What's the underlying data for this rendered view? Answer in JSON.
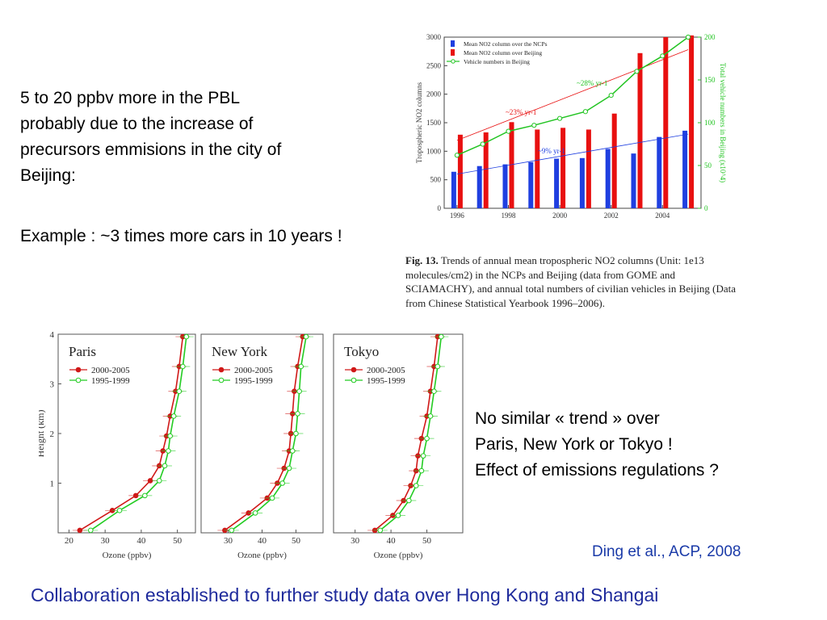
{
  "slide": {
    "intro_lines": [
      "5 to 20 ppbv more in the PBL",
      "probably due to the increase of",
      "precursors emmisions in the city of",
      "Beijing:"
    ],
    "example": "Example : ~3 times more cars in 10 years !",
    "no_similar_lines": [
      "No similar « trend » over",
      "Paris, New York or Tokyo !",
      "Effect of emissions regulations ?"
    ],
    "citation": "Ding et al., ACP, 2008",
    "collaboration": "Collaboration established to further study data over Hong Kong and Shangai"
  },
  "figure_caption": {
    "label": "Fig. 13.",
    "text": "Trends of annual mean tropospheric NO2 columns (Unit: 1e13 molecules/cm2) in the NCPs and Beijing (data from GOME and SCIAMACHY), and annual total numbers of civilian vehicles in Beijing (Data from Chinese Statistical Yearbook 1996–2006)."
  },
  "colors": {
    "ncp_bar": "#1f3fe0",
    "beijing_bar": "#e81010",
    "vehicles": "#22c422",
    "series_2000_2005": "#d01818",
    "series_1995_1999": "#22cc22",
    "slide_blue": "#1f2b9c"
  },
  "chart_data": [
    {
      "type": "bar",
      "title": "",
      "xlabel": "",
      "ylabel": "Tropospheric NO2 columns",
      "y2label": "Total vehicle numbers in Beijing (x10^4)",
      "xticks": [
        "1996",
        "1998",
        "2000",
        "2002",
        "2004"
      ],
      "yticks": [
        "0",
        "500",
        "1000",
        "1500",
        "2000",
        "2500",
        "3000"
      ],
      "y2ticks": [
        "0",
        "50",
        "100",
        "150",
        "200"
      ],
      "ylim": [
        0,
        3000
      ],
      "y2lim": [
        0,
        200
      ],
      "categories": [
        "1996",
        "1997",
        "1998",
        "1999",
        "2000",
        "2001",
        "2002",
        "2003",
        "2004",
        "2005"
      ],
      "legend": [
        "Mean NO2 column over the NCPs",
        "Mean NO2 column over Beijing",
        "Vehicle numbers in Beijing"
      ],
      "legend_position": "top-left",
      "series": [
        {
          "name": "Mean NO2 column over the NCPs",
          "kind": "bar",
          "values": [
            640,
            740,
            770,
            810,
            870,
            880,
            1040,
            960,
            1250,
            1360
          ]
        },
        {
          "name": "Mean NO2 column over Beijing",
          "kind": "bar",
          "values": [
            1290,
            1330,
            1510,
            1380,
            1410,
            1380,
            1660,
            2720,
            3000,
            3030
          ]
        },
        {
          "name": "Vehicle numbers in Beijing",
          "kind": "line",
          "axis": "right",
          "values": [
            62,
            75,
            90,
            97,
            105,
            113,
            132,
            160,
            178,
            200
          ]
        }
      ],
      "annotations": [
        "~28% yr-1",
        "~23% yr-1",
        "~9% yr-1"
      ]
    },
    {
      "type": "scatter",
      "title": "Paris",
      "xlabel": "Ozone (ppbv)",
      "ylabel": "Height (km)",
      "xticks": [
        "20",
        "30",
        "40",
        "50"
      ],
      "yticks": [
        "1",
        "2",
        "3",
        "4"
      ],
      "xlim": [
        17,
        55
      ],
      "ylim": [
        0,
        4
      ],
      "legend": [
        "2000-2005",
        "1995-1999"
      ],
      "series": [
        {
          "name": "2000-2005",
          "points": [
            [
              23,
              0.05
            ],
            [
              32,
              0.45
            ],
            [
              38.5,
              0.75
            ],
            [
              42.5,
              1.05
            ],
            [
              45,
              1.35
            ],
            [
              46,
              1.65
            ],
            [
              47,
              1.95
            ],
            [
              48,
              2.35
            ],
            [
              49.5,
              2.85
            ],
            [
              50.5,
              3.35
            ],
            [
              51.5,
              3.95
            ]
          ]
        },
        {
          "name": "1995-1999",
          "points": [
            [
              26,
              0.05
            ],
            [
              34,
              0.45
            ],
            [
              41,
              0.75
            ],
            [
              45,
              1.05
            ],
            [
              46.5,
              1.35
            ],
            [
              47.5,
              1.65
            ],
            [
              48,
              1.95
            ],
            [
              49,
              2.35
            ],
            [
              50.5,
              2.85
            ],
            [
              51.5,
              3.35
            ],
            [
              52.5,
              3.95
            ]
          ]
        }
      ]
    },
    {
      "type": "scatter",
      "title": "New York",
      "xlabel": "Ozone (ppbv)",
      "ylabel": "",
      "xticks": [
        "30",
        "40",
        "50"
      ],
      "yticks": [],
      "xlim": [
        22,
        58
      ],
      "ylim": [
        0,
        4
      ],
      "legend": [
        "2000-2005",
        "1995-1999"
      ],
      "series": [
        {
          "name": "2000-2005",
          "points": [
            [
              29,
              0.05
            ],
            [
              36,
              0.4
            ],
            [
              41.5,
              0.7
            ],
            [
              44.5,
              1.0
            ],
            [
              46.5,
              1.3
            ],
            [
              48,
              1.65
            ],
            [
              48.5,
              2.0
            ],
            [
              49,
              2.4
            ],
            [
              49.5,
              2.85
            ],
            [
              50.5,
              3.35
            ],
            [
              52,
              3.95
            ]
          ]
        },
        {
          "name": "1995-1999",
          "points": [
            [
              31,
              0.05
            ],
            [
              38,
              0.4
            ],
            [
              43,
              0.7
            ],
            [
              46,
              1.0
            ],
            [
              48,
              1.3
            ],
            [
              49,
              1.65
            ],
            [
              50,
              2.0
            ],
            [
              50.5,
              2.4
            ],
            [
              51,
              2.85
            ],
            [
              51.5,
              3.35
            ],
            [
              53,
              3.95
            ]
          ]
        }
      ]
    },
    {
      "type": "scatter",
      "title": "Tokyo",
      "xlabel": "Ozone (ppbv)",
      "ylabel": "",
      "xticks": [
        "30",
        "40",
        "50"
      ],
      "yticks": [],
      "xlim": [
        24,
        60
      ],
      "ylim": [
        0,
        4
      ],
      "legend": [
        "2000-2005",
        "1995-1999"
      ],
      "series": [
        {
          "name": "2000-2005",
          "points": [
            [
              35.5,
              0.05
            ],
            [
              40.5,
              0.35
            ],
            [
              43.5,
              0.65
            ],
            [
              45.5,
              0.95
            ],
            [
              47,
              1.25
            ],
            [
              47.5,
              1.55
            ],
            [
              48.5,
              1.9
            ],
            [
              50,
              2.35
            ],
            [
              51,
              2.85
            ],
            [
              52,
              3.35
            ],
            [
              53,
              3.95
            ]
          ]
        },
        {
          "name": "1995-1999",
          "points": [
            [
              37,
              0.05
            ],
            [
              42,
              0.35
            ],
            [
              45,
              0.65
            ],
            [
              47,
              0.95
            ],
            [
              48.5,
              1.25
            ],
            [
              49,
              1.55
            ],
            [
              50,
              1.9
            ],
            [
              51,
              2.35
            ],
            [
              52,
              2.85
            ],
            [
              53,
              3.35
            ],
            [
              54,
              3.95
            ]
          ]
        }
      ]
    }
  ]
}
